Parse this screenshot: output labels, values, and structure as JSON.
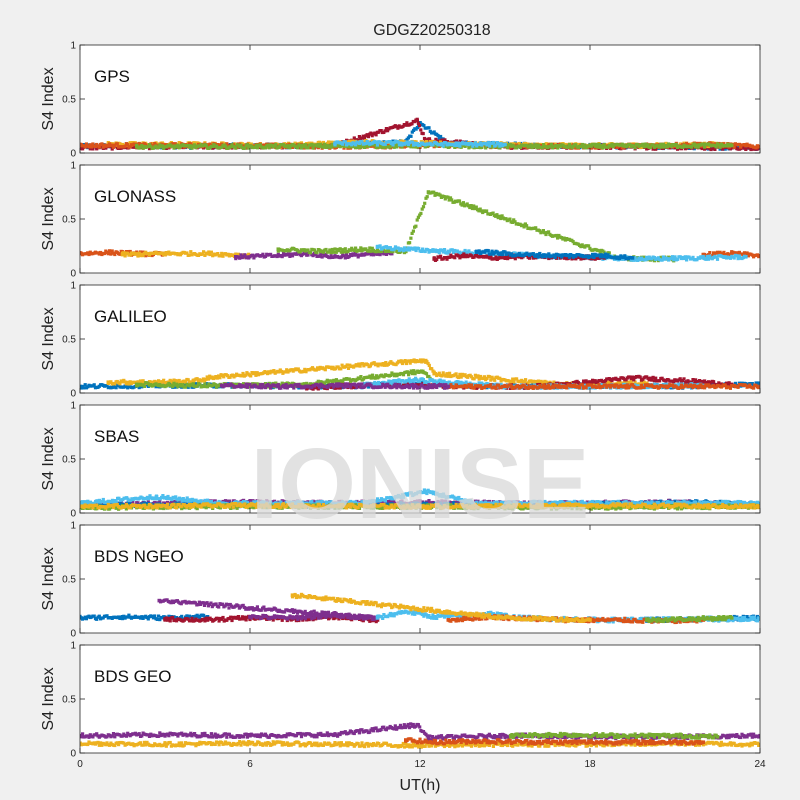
{
  "chart_data": {
    "type": "scatter",
    "title": "GDGZ20250318",
    "xlabel": "UT(h)",
    "ylabel": "S4 Index",
    "xlim": [
      0,
      24
    ],
    "ylim": [
      0,
      1
    ],
    "xticks": [
      0,
      6,
      12,
      18,
      24
    ],
    "yticks": [
      0,
      0.5,
      1
    ],
    "grid": false,
    "watermark": "IONISE",
    "colors": {
      "blue": "#0072BD",
      "orange": "#D95319",
      "yellow": "#EDB120",
      "purple": "#7E2F8E",
      "green": "#77AC30",
      "cyan": "#4DBEEE",
      "red": "#A2142F"
    },
    "panels": [
      {
        "label": "GPS",
        "series": [
          {
            "color": "blue",
            "x": [
              0,
              2,
              4,
              6,
              8,
              10,
              11.5,
              12,
              13,
              16,
              20,
              24
            ],
            "y": [
              0.06,
              0.07,
              0.06,
              0.07,
              0.06,
              0.08,
              0.1,
              0.28,
              0.09,
              0.07,
              0.06,
              0.05
            ]
          },
          {
            "color": "red",
            "x": [
              0,
              3,
              6,
              9,
              11.9,
              12.2,
              15,
              18,
              21,
              24
            ],
            "y": [
              0.05,
              0.06,
              0.06,
              0.07,
              0.3,
              0.12,
              0.06,
              0.06,
              0.05,
              0.05
            ]
          },
          {
            "color": "yellow",
            "x": [
              1,
              4,
              7,
              10,
              14,
              17,
              20,
              23
            ],
            "y": [
              0.08,
              0.08,
              0.07,
              0.1,
              0.08,
              0.07,
              0.07,
              0.08
            ]
          },
          {
            "color": "orange",
            "x": [
              0,
              5,
              9,
              13,
              18,
              22,
              24
            ],
            "y": [
              0.07,
              0.07,
              0.06,
              0.07,
              0.06,
              0.08,
              0.06
            ]
          },
          {
            "color": "green",
            "x": [
              2,
              6,
              12,
              16,
              23
            ],
            "y": [
              0.06,
              0.06,
              0.07,
              0.06,
              0.07
            ]
          },
          {
            "color": "cyan",
            "x": [
              9,
              11,
              13,
              15
            ],
            "y": [
              0.09,
              0.09,
              0.08,
              0.08
            ]
          }
        ]
      },
      {
        "label": "GLONASS",
        "series": [
          {
            "color": "orange",
            "x": [
              0,
              1,
              2,
              3,
              22,
              23,
              24
            ],
            "y": [
              0.18,
              0.19,
              0.18,
              0.17,
              0.17,
              0.18,
              0.16
            ]
          },
          {
            "color": "yellow",
            "x": [
              1.5,
              3,
              4.5,
              6
            ],
            "y": [
              0.17,
              0.18,
              0.18,
              0.16
            ]
          },
          {
            "color": "purple",
            "x": [
              5.5,
              7,
              8,
              9,
              10,
              11
            ],
            "y": [
              0.15,
              0.16,
              0.18,
              0.15,
              0.17,
              0.18
            ]
          },
          {
            "color": "green",
            "x": [
              7,
              8.5,
              10,
              11.5,
              12.3,
              19,
              20,
              21
            ],
            "y": [
              0.22,
              0.2,
              0.22,
              0.2,
              0.75,
              0.14,
              0.13,
              0.13
            ]
          },
          {
            "color": "cyan",
            "x": [
              10.5,
              11.5,
              13,
              14.5,
              16,
              20,
              22,
              23.5
            ],
            "y": [
              0.24,
              0.22,
              0.2,
              0.18,
              0.16,
              0.13,
              0.14,
              0.15
            ]
          },
          {
            "color": "red",
            "x": [
              12.5,
              13.5,
              14.5,
              15.5,
              17,
              18.5
            ],
            "y": [
              0.13,
              0.16,
              0.14,
              0.15,
              0.15,
              0.14
            ]
          },
          {
            "color": "blue",
            "x": [
              14,
              15.5,
              17,
              18.5,
              19.5
            ],
            "y": [
              0.2,
              0.17,
              0.16,
              0.16,
              0.14
            ]
          }
        ]
      },
      {
        "label": "GALILEO",
        "series": [
          {
            "color": "blue",
            "x": [
              0,
              3,
              6,
              9,
              12,
              15,
              18,
              21,
              24
            ],
            "y": [
              0.06,
              0.07,
              0.07,
              0.06,
              0.08,
              0.06,
              0.07,
              0.06,
              0.08
            ]
          },
          {
            "color": "yellow",
            "x": [
              1,
              2.5,
              4,
              4.8,
              12.2,
              12.5,
              17,
              20
            ],
            "y": [
              0.1,
              0.1,
              0.11,
              0.15,
              0.3,
              0.18,
              0.08,
              0.09
            ]
          },
          {
            "color": "green",
            "x": [
              2,
              4,
              6,
              8,
              12.1,
              12.4
            ],
            "y": [
              0.08,
              0.07,
              0.07,
              0.08,
              0.2,
              0.12
            ]
          },
          {
            "color": "red",
            "x": [
              8,
              10,
              11.5,
              14,
              16,
              18,
              19.5,
              21,
              23
            ],
            "y": [
              0.05,
              0.07,
              0.08,
              0.06,
              0.06,
              0.1,
              0.14,
              0.12,
              0.08
            ]
          },
          {
            "color": "cyan",
            "x": [
              10,
              11.8,
              15,
              18,
              22
            ],
            "y": [
              0.07,
              0.12,
              0.06,
              0.06,
              0.07
            ]
          },
          {
            "color": "orange",
            "x": [
              13,
              16,
              19,
              22,
              24
            ],
            "y": [
              0.06,
              0.06,
              0.06,
              0.06,
              0.06
            ]
          },
          {
            "color": "purple",
            "x": [
              5,
              7,
              9,
              13
            ],
            "y": [
              0.07,
              0.06,
              0.07,
              0.06
            ]
          }
        ]
      },
      {
        "label": "SBAS",
        "series": [
          {
            "color": "purple",
            "x": [
              0,
              3,
              6,
              9,
              12,
              15,
              18,
              21,
              24
            ],
            "y": [
              0.08,
              0.09,
              0.1,
              0.09,
              0.1,
              0.09,
              0.09,
              0.1,
              0.08
            ]
          },
          {
            "color": "blue",
            "x": [
              0,
              4,
              8,
              12,
              16,
              20,
              22,
              24
            ],
            "y": [
              0.07,
              0.08,
              0.07,
              0.08,
              0.07,
              0.09,
              0.1,
              0.07
            ]
          },
          {
            "color": "cyan",
            "x": [
              0,
              2.7,
              5,
              10,
              12.2,
              14,
              18,
              24
            ],
            "y": [
              0.09,
              0.15,
              0.09,
              0.09,
              0.2,
              0.09,
              0.09,
              0.09
            ]
          },
          {
            "color": "green",
            "x": [
              0,
              6,
              12,
              18,
              24
            ],
            "y": [
              0.05,
              0.06,
              0.06,
              0.05,
              0.06
            ]
          },
          {
            "color": "yellow",
            "x": [
              0,
              6,
              12,
              18,
              24
            ],
            "y": [
              0.06,
              0.07,
              0.06,
              0.07,
              0.06
            ]
          }
        ]
      },
      {
        "label": "BDS NGEO",
        "series": [
          {
            "color": "blue",
            "x": [
              0,
              1.5,
              3,
              4.5,
              20,
              22,
              24
            ],
            "y": [
              0.14,
              0.15,
              0.14,
              0.15,
              0.12,
              0.13,
              0.14
            ]
          },
          {
            "color": "red",
            "x": [
              3,
              4.5,
              6,
              7.5,
              9,
              10.5
            ],
            "y": [
              0.13,
              0.12,
              0.14,
              0.13,
              0.15,
              0.12
            ]
          },
          {
            "color": "purple",
            "x": [
              6,
              7.5,
              9,
              10.5,
              2.8
            ],
            "y": [
              0.15,
              0.14,
              0.16,
              0.14,
              0.3
            ]
          },
          {
            "color": "cyan",
            "x": [
              10.5,
              11.5,
              12.5,
              13.5,
              14.5,
              15.5,
              17,
              18.5,
              24
            ],
            "y": [
              0.14,
              0.2,
              0.15,
              0.16,
              0.18,
              0.14,
              0.13,
              0.12,
              0.13
            ]
          },
          {
            "color": "orange",
            "x": [
              13,
              14.5,
              16,
              17.5,
              19,
              20.5,
              22
            ],
            "y": [
              0.12,
              0.15,
              0.13,
              0.12,
              0.12,
              0.11,
              0.12
            ]
          },
          {
            "color": "yellow",
            "x": [
              7.5,
              13.5,
              15,
              16.5,
              18
            ],
            "y": [
              0.35,
              0.18,
              0.14,
              0.13,
              0.12
            ]
          },
          {
            "color": "green",
            "x": [
              20,
              21.5,
              23
            ],
            "y": [
              0.12,
              0.13,
              0.14
            ]
          }
        ]
      },
      {
        "label": "BDS GEO",
        "series": [
          {
            "color": "purple",
            "x": [
              0,
              3,
              6,
              9,
              11.9,
              12.3,
              15,
              18,
              21,
              24
            ],
            "y": [
              0.16,
              0.17,
              0.16,
              0.17,
              0.26,
              0.14,
              0.16,
              0.15,
              0.15,
              0.16
            ]
          },
          {
            "color": "yellow",
            "x": [
              0,
              3,
              6,
              9,
              12,
              15,
              18,
              21,
              24
            ],
            "y": [
              0.09,
              0.08,
              0.09,
              0.08,
              0.07,
              0.08,
              0.08,
              0.09,
              0.08
            ]
          },
          {
            "color": "green",
            "x": [
              15.2,
              17,
              19,
              21,
              22.5
            ],
            "y": [
              0.16,
              0.17,
              0.16,
              0.16,
              0.15
            ]
          },
          {
            "color": "orange",
            "x": [
              11.5,
              12.5,
              14,
              16,
              19,
              22
            ],
            "y": [
              0.12,
              0.1,
              0.11,
              0.1,
              0.1,
              0.1
            ]
          }
        ]
      }
    ]
  }
}
